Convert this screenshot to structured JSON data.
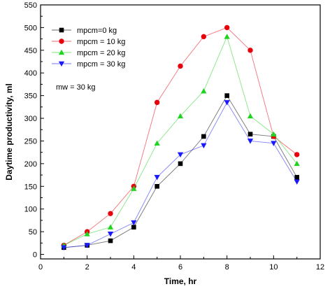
{
  "chart_data": {
    "type": "line",
    "xlabel": "Time, hr",
    "ylabel": "Daytime  productivity, ml",
    "xlim": [
      0,
      12
    ],
    "ylim": [
      -10,
      550
    ],
    "xticks": [
      0,
      2,
      4,
      6,
      8,
      10,
      12
    ],
    "yticks": [
      0,
      50,
      100,
      150,
      200,
      250,
      300,
      350,
      400,
      450,
      500,
      550
    ],
    "grid": false,
    "legend_position": "top-left",
    "x": [
      1,
      2,
      3,
      4,
      5,
      6,
      7,
      8,
      9,
      10,
      11
    ],
    "series": [
      {
        "name": "mpcm=0 kg",
        "marker": "square",
        "color": "#000000",
        "values": [
          15,
          20,
          30,
          60,
          150,
          200,
          260,
          350,
          265,
          260,
          170
        ]
      },
      {
        "name": "mpcm = 10 kg",
        "marker": "circle",
        "color": "#e8000b",
        "values": [
          20,
          50,
          90,
          150,
          335,
          415,
          480,
          500,
          450,
          260,
          220
        ]
      },
      {
        "name": "mpcm = 20 kg",
        "marker": "triangle-up",
        "color": "#1fd41f",
        "values": [
          20,
          45,
          60,
          145,
          245,
          305,
          360,
          480,
          305,
          265,
          200
        ]
      },
      {
        "name": "mpcm = 30 kg",
        "marker": "triangle-down",
        "color": "#1a1aff",
        "values": [
          15,
          20,
          45,
          70,
          170,
          220,
          240,
          335,
          250,
          245,
          160
        ]
      }
    ],
    "annotations": [
      {
        "text": "mw = 30 kg"
      }
    ]
  }
}
